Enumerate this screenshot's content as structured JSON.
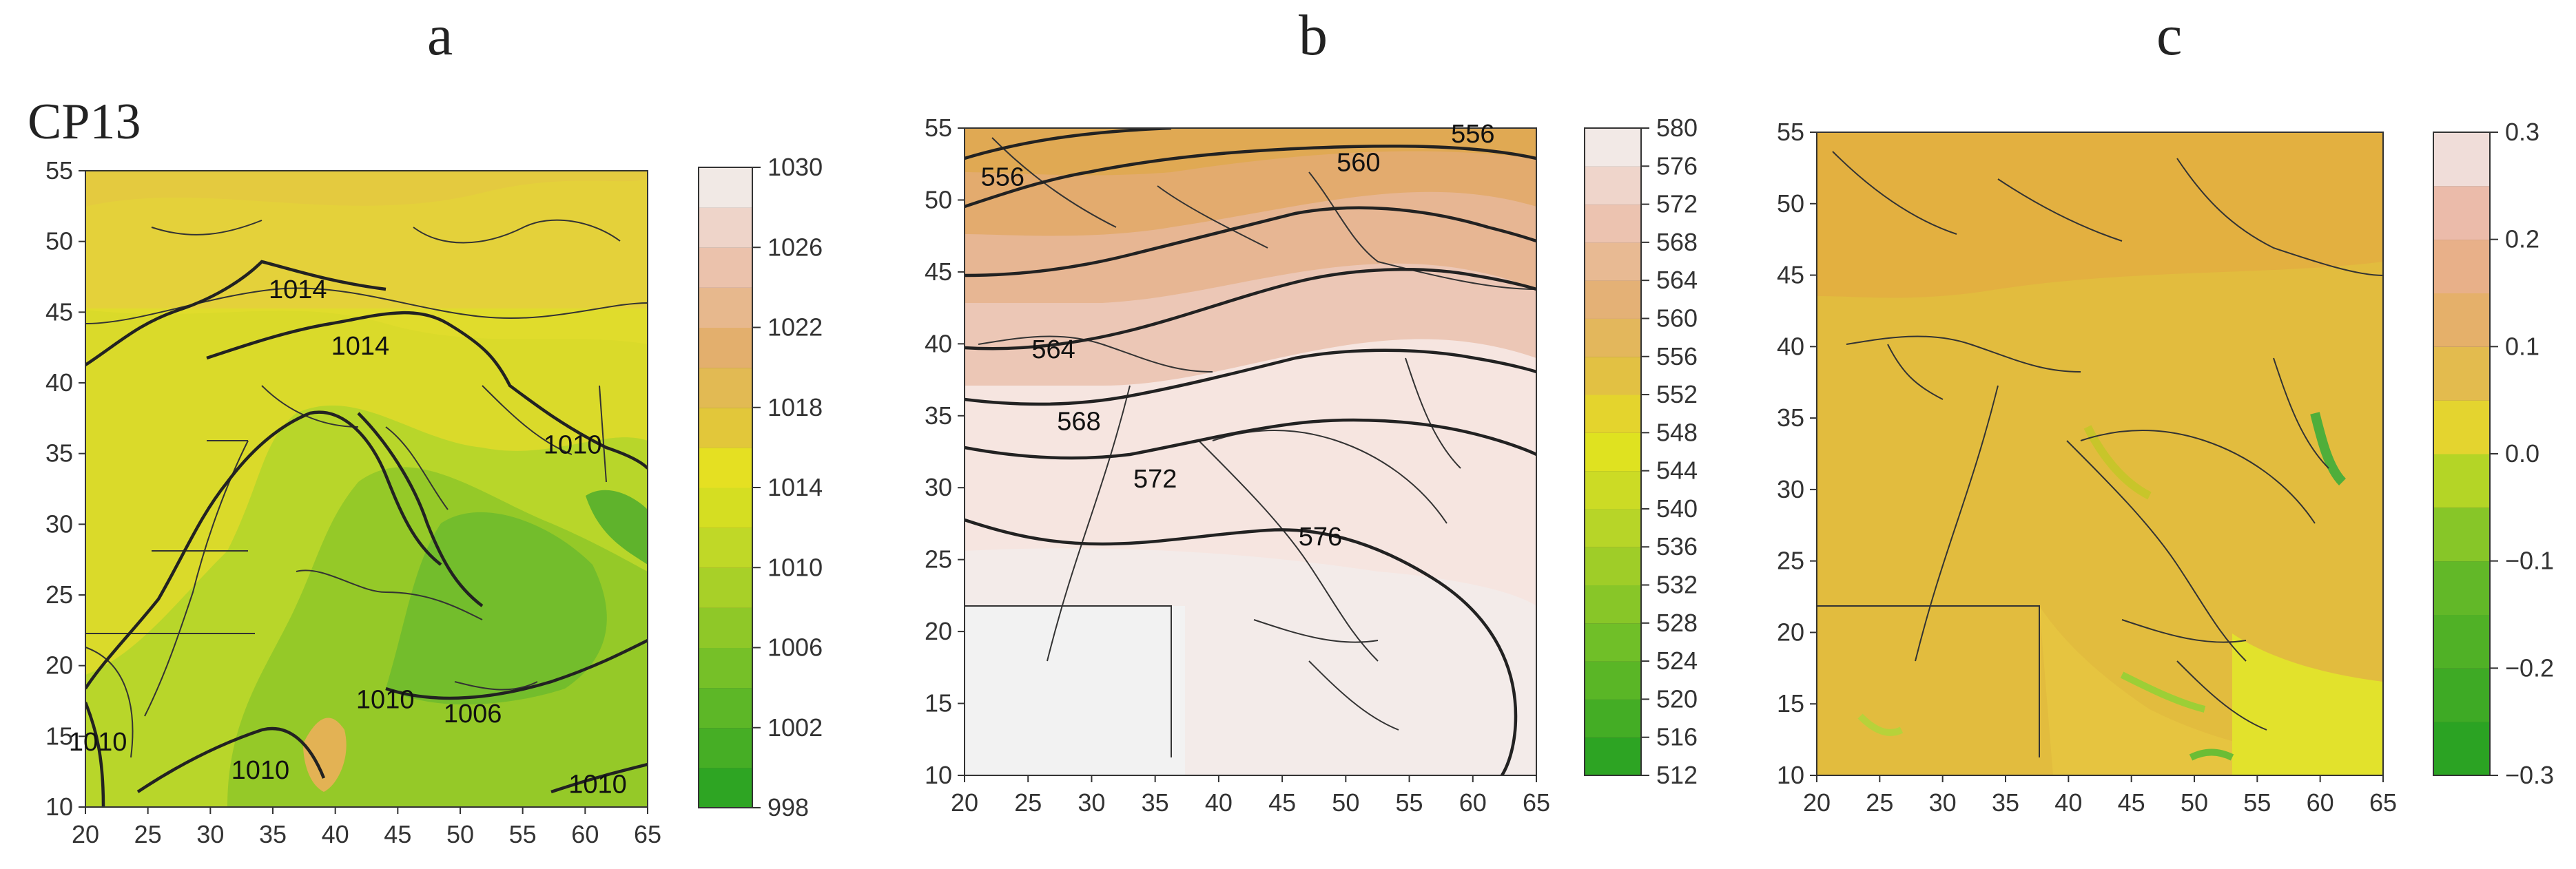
{
  "figure": {
    "pattern_label": "CP13",
    "panel_letters": [
      "a",
      "b",
      "c"
    ]
  },
  "chart_data": [
    {
      "panel": "a",
      "type": "heatmap",
      "title": "a",
      "xlabel": "",
      "ylabel": "",
      "xlim": [
        20,
        65
      ],
      "ylim": [
        10,
        55
      ],
      "x_ticks": [
        20,
        25,
        30,
        35,
        40,
        45,
        50,
        55,
        60,
        65
      ],
      "y_ticks": [
        10,
        15,
        20,
        25,
        30,
        35,
        40,
        45,
        50,
        55
      ],
      "colorbar_ticks": [
        998,
        1002,
        1006,
        1010,
        1014,
        1018,
        1022,
        1026,
        1030
      ],
      "colorbar_range": [
        998,
        1030
      ],
      "colorbar_step": 2,
      "contour_labels": [
        {
          "text": "1014",
          "lon": 37,
          "lat": 46
        },
        {
          "text": "1014",
          "lon": 42,
          "lat": 42
        },
        {
          "text": "1010",
          "lon": 59,
          "lat": 35
        },
        {
          "text": "1010",
          "lon": 44,
          "lat": 17
        },
        {
          "text": "1006",
          "lon": 51,
          "lat": 16
        },
        {
          "text": "1010",
          "lon": 34,
          "lat": 12
        },
        {
          "text": "1010",
          "lon": 61,
          "lat": 11
        },
        {
          "text": "1010",
          "lon": 21,
          "lat": 14
        }
      ]
    },
    {
      "panel": "b",
      "type": "heatmap",
      "title": "b",
      "xlabel": "",
      "ylabel": "",
      "xlim": [
        20,
        65
      ],
      "ylim": [
        10,
        55
      ],
      "x_ticks": [
        20,
        25,
        30,
        35,
        40,
        45,
        50,
        55,
        60,
        65
      ],
      "y_ticks": [
        10,
        15,
        20,
        25,
        30,
        35,
        40,
        45,
        50,
        55
      ],
      "colorbar_ticks": [
        512,
        516,
        520,
        524,
        528,
        532,
        536,
        540,
        544,
        548,
        552,
        556,
        560,
        564,
        568,
        572,
        576,
        580
      ],
      "colorbar_range": [
        512,
        580
      ],
      "colorbar_step": 4,
      "contour_labels": [
        {
          "text": "556",
          "lon": 23,
          "lat": 51
        },
        {
          "text": "556",
          "lon": 60,
          "lat": 54
        },
        {
          "text": "560",
          "lon": 51,
          "lat": 52
        },
        {
          "text": "564",
          "lon": 27,
          "lat": 39
        },
        {
          "text": "568",
          "lon": 29,
          "lat": 34
        },
        {
          "text": "572",
          "lon": 35,
          "lat": 30
        },
        {
          "text": "576",
          "lon": 48,
          "lat": 26
        }
      ]
    },
    {
      "panel": "c",
      "type": "heatmap",
      "title": "c",
      "xlabel": "",
      "ylabel": "",
      "xlim": [
        20,
        65
      ],
      "ylim": [
        10,
        55
      ],
      "x_ticks": [
        20,
        25,
        30,
        35,
        40,
        45,
        50,
        55,
        60,
        65
      ],
      "y_ticks": [
        10,
        15,
        20,
        25,
        30,
        35,
        40,
        45,
        50,
        55
      ],
      "colorbar_ticks": [
        "0.3",
        "0.2",
        "0.1",
        "0.0",
        "−0.1",
        "−0.2",
        "−0.3"
      ],
      "colorbar_range": [
        -0.3,
        0.3
      ],
      "colorbar_step": 0.05
    }
  ],
  "colors": {
    "low_green": "#2fa52f",
    "mid_yellow": "#e6e61c",
    "orange": "#e3b254",
    "salmon": "#eec3b3",
    "pale_pink": "#f4dcd5",
    "near_white": "#f2f2f2",
    "contour": "#222222",
    "border": "#333333"
  }
}
